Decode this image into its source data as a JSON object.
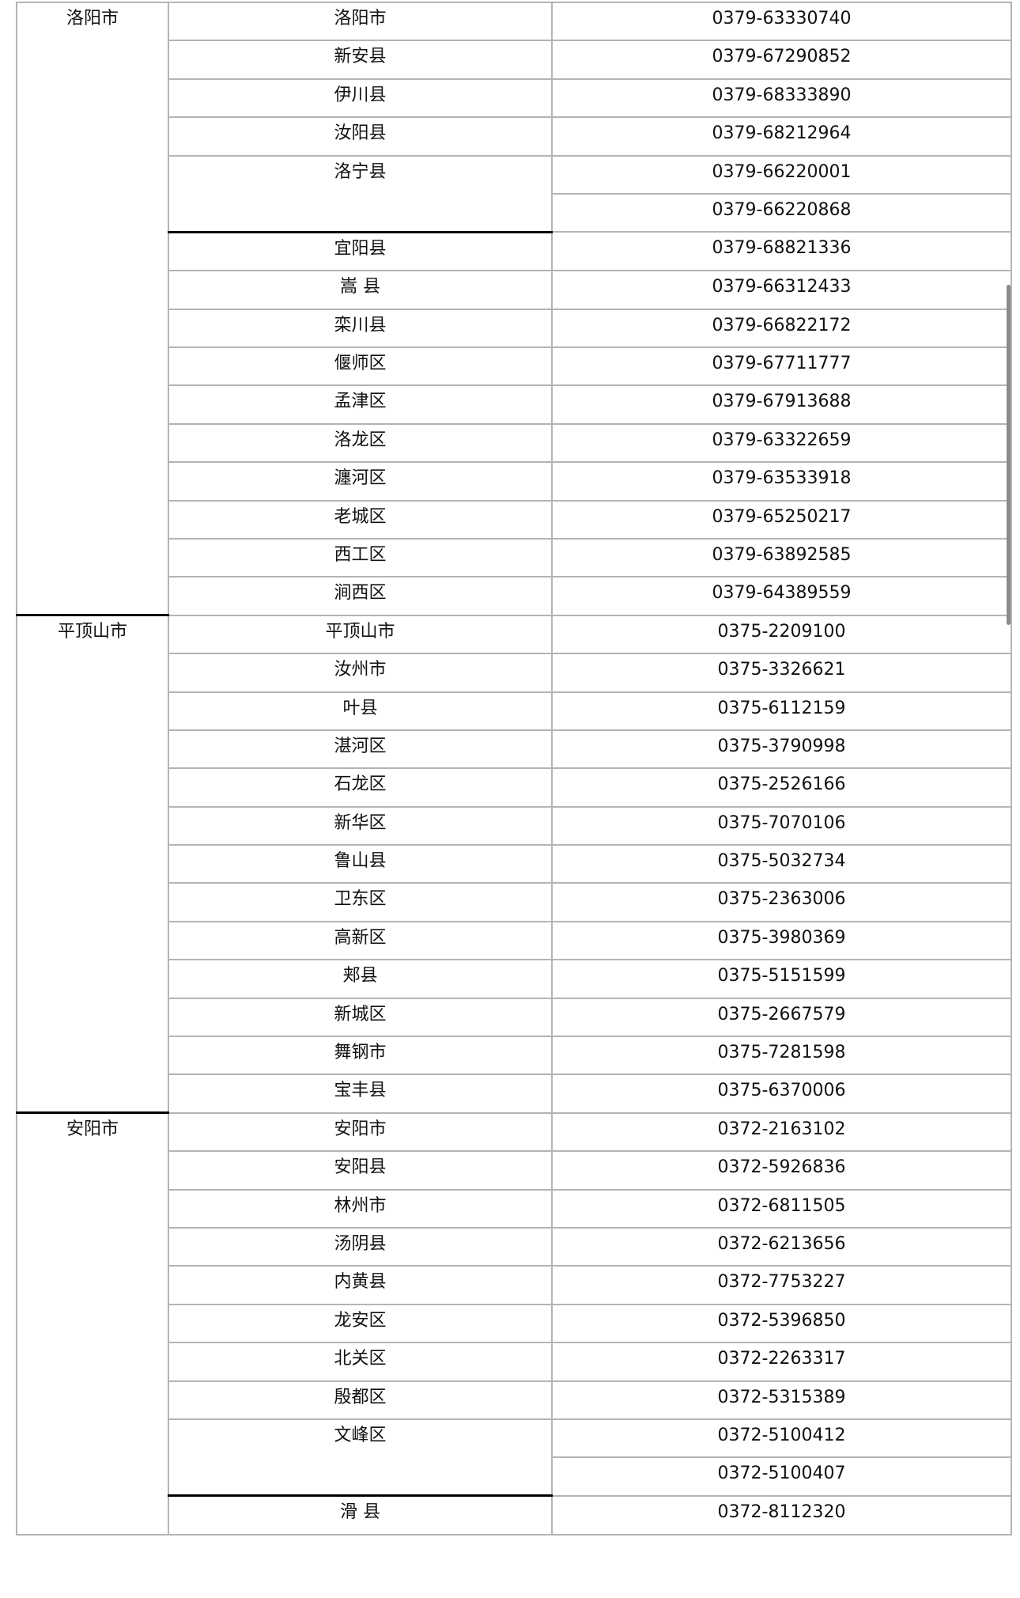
{
  "groups": [
    {
      "city": "洛阳市",
      "items": [
        {
          "name": "洛阳市",
          "phones": [
            "0379-63330740"
          ]
        },
        {
          "name": "新安县",
          "phones": [
            "0379-67290852"
          ]
        },
        {
          "name": "伊川县",
          "phones": [
            "0379-68333890"
          ]
        },
        {
          "name": "汝阳县",
          "phones": [
            "0379-68212964"
          ]
        },
        {
          "name": "洛宁县",
          "phones": [
            "0379-66220001",
            "0379-66220868"
          ]
        },
        {
          "name": "宜阳县",
          "phones": [
            "0379-68821336"
          ]
        },
        {
          "name": "嵩  县",
          "phones": [
            "0379-66312433"
          ]
        },
        {
          "name": "栾川县",
          "phones": [
            "0379-66822172"
          ]
        },
        {
          "name": "偃师区",
          "phones": [
            "0379-67711777"
          ]
        },
        {
          "name": "孟津区",
          "phones": [
            "0379-67913688"
          ]
        },
        {
          "name": "洛龙区",
          "phones": [
            "0379-63322659"
          ]
        },
        {
          "name": "瀍河区",
          "phones": [
            "0379-63533918"
          ]
        },
        {
          "name": "老城区",
          "phones": [
            "0379-65250217"
          ]
        },
        {
          "name": "西工区",
          "phones": [
            "0379-63892585"
          ]
        },
        {
          "name": "涧西区",
          "phones": [
            "0379-64389559"
          ]
        }
      ]
    },
    {
      "city": "平顶山市",
      "items": [
        {
          "name": "平顶山市",
          "phones": [
            "0375-2209100"
          ]
        },
        {
          "name": "汝州市",
          "phones": [
            "0375-3326621"
          ]
        },
        {
          "name": "叶县",
          "phones": [
            "0375-6112159"
          ]
        },
        {
          "name": "湛河区",
          "phones": [
            "0375-3790998"
          ]
        },
        {
          "name": "石龙区",
          "phones": [
            "0375-2526166"
          ]
        },
        {
          "name": "新华区",
          "phones": [
            "0375-7070106"
          ]
        },
        {
          "name": "鲁山县",
          "phones": [
            "0375-5032734"
          ]
        },
        {
          "name": "卫东区",
          "phones": [
            "0375-2363006"
          ]
        },
        {
          "name": "高新区",
          "phones": [
            "0375-3980369"
          ]
        },
        {
          "name": "郏县",
          "phones": [
            "0375-5151599"
          ]
        },
        {
          "name": "新城区",
          "phones": [
            "0375-2667579"
          ]
        },
        {
          "name": "舞钢市",
          "phones": [
            "0375-7281598"
          ]
        },
        {
          "name": "宝丰县",
          "phones": [
            "0375-6370006"
          ]
        }
      ]
    },
    {
      "city": "安阳市",
      "items": [
        {
          "name": "安阳市",
          "phones": [
            "0372-2163102"
          ]
        },
        {
          "name": "安阳县",
          "phones": [
            "0372-5926836"
          ]
        },
        {
          "name": "林州市",
          "phones": [
            "0372-6811505"
          ]
        },
        {
          "name": "汤阴县",
          "phones": [
            "0372-6213656"
          ]
        },
        {
          "name": "内黄县",
          "phones": [
            "0372-7753227"
          ]
        },
        {
          "name": "龙安区",
          "phones": [
            "0372-5396850"
          ]
        },
        {
          "name": "北关区",
          "phones": [
            "0372-2263317"
          ]
        },
        {
          "name": "殷都区",
          "phones": [
            "0372-5315389"
          ]
        },
        {
          "name": "文峰区",
          "phones": [
            "0372-5100412",
            "0372-5100407"
          ]
        },
        {
          "name": "滑  县",
          "phones": [
            "0372-8112320"
          ]
        }
      ]
    }
  ]
}
